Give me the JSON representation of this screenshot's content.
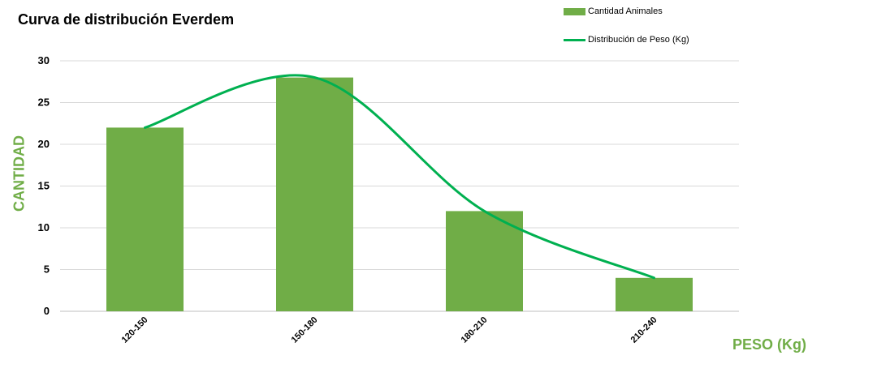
{
  "chart_data": {
    "type": "bar",
    "title": "Curva de distribución Everdem",
    "xlabel": "PESO (Kg)",
    "ylabel": "CANTIDAD",
    "categories": [
      "120-150",
      "150-180",
      "180-210",
      "210-240"
    ],
    "series": [
      {
        "name": "Cantidad Animales",
        "kind": "bar",
        "color": "#70AD47",
        "values": [
          22,
          28,
          12,
          4
        ]
      },
      {
        "name": "Distribución de Peso (Kg)",
        "kind": "line",
        "smooth": true,
        "color": "#00B050",
        "values": [
          22,
          28,
          12,
          4
        ]
      }
    ],
    "ylim": [
      0,
      30
    ],
    "yticks": [
      0,
      5,
      10,
      15,
      20,
      25,
      30
    ],
    "grid": true,
    "legend": "top-right",
    "axis_title_color": "#70AD47"
  }
}
